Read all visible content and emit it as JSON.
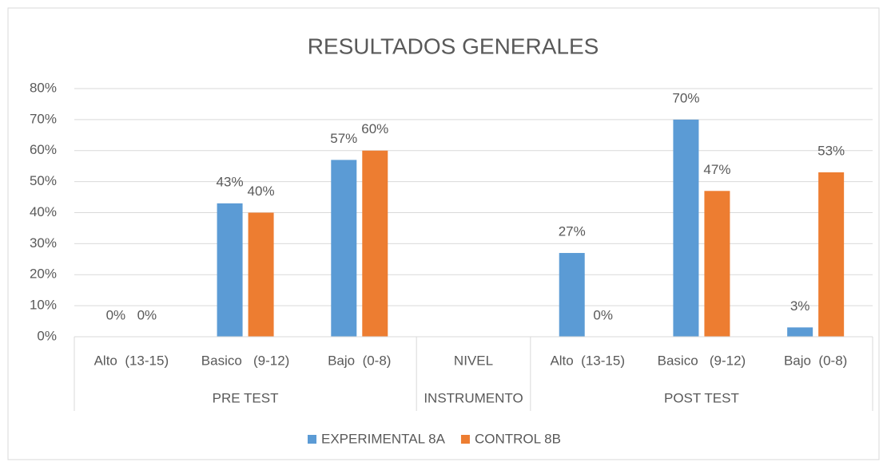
{
  "chart_data": {
    "type": "bar",
    "title": "RESULTADOS GENERALES",
    "groups": [
      {
        "name": "PRE TEST",
        "categories": [
          "Alto  (13-15)",
          "Basico   (9-12)",
          "Bajo  (0-8)"
        ]
      },
      {
        "name": "INSTRUMENTO",
        "categories": [
          "NIVEL"
        ]
      },
      {
        "name": "POST TEST",
        "categories": [
          "Alto  (13-15)",
          "Basico   (9-12)",
          "Bajo  (0-8)"
        ]
      }
    ],
    "series": [
      {
        "name": "EXPERIMENTAL 8A",
        "color": "#5b9bd5",
        "values": [
          0,
          43,
          57,
          null,
          27,
          70,
          3
        ],
        "value_labels": [
          "0%",
          "43%",
          "57%",
          null,
          "27%",
          "70%",
          "3%"
        ]
      },
      {
        "name": "CONTROL 8B",
        "color": "#ed7d31",
        "values": [
          0,
          40,
          60,
          null,
          0,
          47,
          53
        ],
        "value_labels": [
          "0%",
          "40%",
          "60%",
          null,
          "0%",
          "47%",
          "53%"
        ]
      }
    ],
    "ylim": [
      0,
      80
    ],
    "yticks": [
      {
        "value": 0,
        "label": "0%"
      },
      {
        "value": 10,
        "label": "10%"
      },
      {
        "value": 20,
        "label": "20%"
      },
      {
        "value": 30,
        "label": "30%"
      },
      {
        "value": 40,
        "label": "40%"
      },
      {
        "value": 50,
        "label": "50%"
      },
      {
        "value": 60,
        "label": "60%"
      },
      {
        "value": 70,
        "label": "70%"
      },
      {
        "value": 80,
        "label": "80%"
      }
    ],
    "grid": true,
    "legend": "bottom"
  }
}
